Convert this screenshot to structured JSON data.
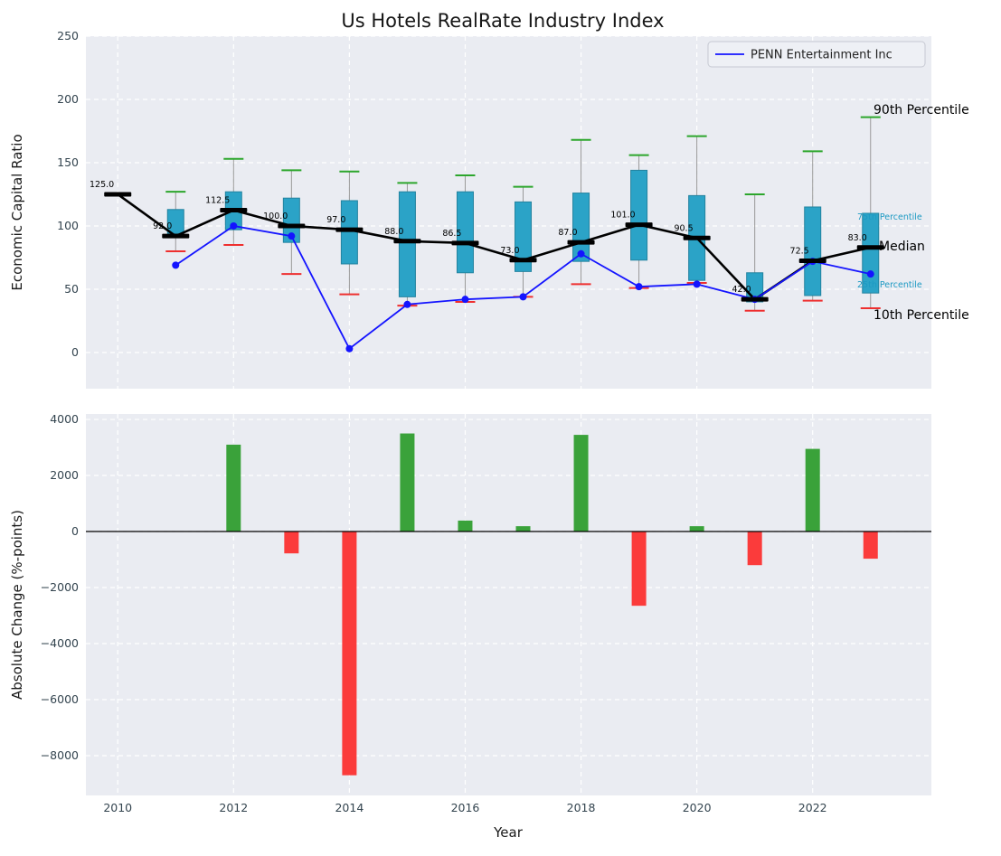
{
  "title": "Us Hotels RealRate Industry Index",
  "legend": {
    "series_label": "PENN Entertainment Inc"
  },
  "axes": {
    "top": {
      "ylabel": "Economic Capital Ratio",
      "ytick_values": [
        0,
        50,
        100,
        150,
        200,
        250
      ],
      "yticks": [
        "0",
        "50",
        "100",
        "150",
        "200",
        "250"
      ]
    },
    "bottom": {
      "ylabel": "Absolute Change (%-points)",
      "xlabel": "Year",
      "ytick_values": [
        -8000,
        -6000,
        -4000,
        -2000,
        0,
        2000,
        4000
      ],
      "yticks": [
        "−8000",
        "−6000",
        "−4000",
        "−2000",
        "0",
        "2000",
        "4000"
      ],
      "xtick_values": [
        2010,
        2012,
        2014,
        2016,
        2018,
        2020,
        2022
      ],
      "xticks": [
        "2010",
        "2012",
        "2014",
        "2016",
        "2018",
        "2020",
        "2022"
      ]
    }
  },
  "annotations": [
    {
      "text": "90th Percentile",
      "color": "black"
    },
    {
      "text": "75th Percentile",
      "color": "teal"
    },
    {
      "text": "Median",
      "color": "black"
    },
    {
      "text": "25th Percentile",
      "color": "teal"
    },
    {
      "text": "10th Percentile",
      "color": "black"
    }
  ],
  "colors": {
    "figure_background": "#ffffff",
    "axes_background": "#eaecf2",
    "grid": "#ffffff",
    "box_fill": "#2ba3c7",
    "box_edge": "#23839f",
    "whisker": "#999999",
    "p90_cap": "#2ca62c",
    "p10_cap": "#ee2f2f",
    "median_line": "#000000",
    "penn_line": "#1414ff",
    "bar_positive": "#3aa23a",
    "bar_negative": "#fb3b3b",
    "percentile_label_teal": "#1d9ac3",
    "tick_label": "#33444f",
    "legend_background": "#eef0f5",
    "legend_border": "#c6c9d2"
  },
  "chart_data": [
    {
      "type": "boxplot",
      "title": "Us Hotels RealRate Industry Index",
      "ylabel": "Economic Capital Ratio",
      "ylim": [
        -28.6,
        250
      ],
      "xlim": [
        2009.45,
        2024.05
      ],
      "yticks": [
        0,
        50,
        100,
        150,
        200,
        250
      ],
      "grid": true,
      "legend_position": "upper right",
      "years": [
        2010,
        2011,
        2012,
        2013,
        2014,
        2015,
        2016,
        2017,
        2018,
        2019,
        2020,
        2021,
        2022,
        2023
      ],
      "median": [
        125,
        92,
        112.5,
        100,
        97,
        88,
        86.5,
        73,
        87,
        101,
        90.5,
        42,
        72.5,
        83
      ],
      "median_labels": [
        "125.0",
        "92.0",
        "112.5",
        "100.0",
        "97.0",
        "88.0",
        "86.5",
        "73.0",
        "87.0",
        "101.0",
        "90.5",
        "42.0",
        "72.5",
        "83.0"
      ],
      "q1": [
        null,
        94,
        97,
        87,
        70,
        44,
        63,
        64,
        72,
        73,
        57,
        40,
        45,
        47
      ],
      "q3": [
        null,
        113,
        127,
        122,
        120,
        127,
        127,
        119,
        126,
        144,
        124,
        63,
        115,
        110
      ],
      "p90": [
        null,
        127,
        153,
        144,
        143,
        134,
        140,
        131,
        168,
        156,
        171,
        125,
        159,
        186
      ],
      "p10": [
        null,
        80,
        85,
        62,
        46,
        37,
        40,
        44,
        54,
        51,
        55,
        33,
        41,
        35
      ],
      "series": [
        {
          "name": "PENN Entertainment Inc",
          "values": [
            null,
            69,
            100,
            92,
            3,
            38,
            42,
            44,
            78,
            52,
            54,
            42,
            72,
            62
          ]
        }
      ]
    },
    {
      "type": "bar",
      "ylabel": "Absolute Change (%-points)",
      "xlabel": "Year",
      "ylim": [
        -9420,
        4195
      ],
      "yticks": [
        -8000,
        -6000,
        -4000,
        -2000,
        0,
        2000,
        4000
      ],
      "years": [
        2010,
        2011,
        2012,
        2013,
        2014,
        2015,
        2016,
        2017,
        2018,
        2019,
        2020,
        2021,
        2022,
        2023
      ],
      "values": [
        null,
        null,
        3100,
        -780,
        -8700,
        3500,
        390,
        190,
        3450,
        -2650,
        190,
        -1200,
        2950,
        -970
      ]
    }
  ]
}
